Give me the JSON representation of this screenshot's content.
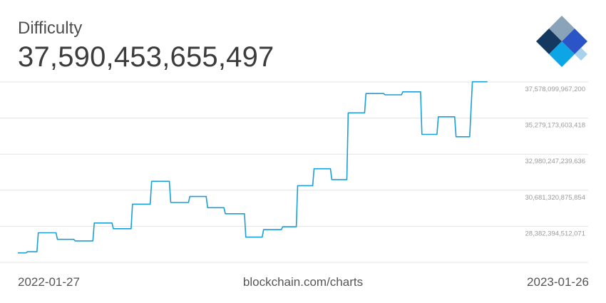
{
  "header": {
    "title": "Difficulty",
    "current_value": "37,590,453,655,497"
  },
  "footer": {
    "start_date": "2022-01-27",
    "source": "blockchain.com/charts",
    "end_date": "2023-01-26"
  },
  "colors": {
    "line": "#1c9fd6",
    "grid": "#e3e3e3",
    "tick_text": "#9a9a9a",
    "logo_dark": "#14385f",
    "logo_blue": "#2b54c7",
    "logo_cyan": "#0ea5e6",
    "logo_gray": "#8aa3b8",
    "logo_light": "#a9d3ea"
  },
  "chart_data": {
    "type": "line",
    "title": "Difficulty",
    "xlabel": "",
    "ylabel": "",
    "grid": true,
    "legend": "none",
    "xlim": [
      "2022-01-27",
      "2023-01-26"
    ],
    "ylim": [
      26083468148288,
      37578099967200
    ],
    "y_ticks": [
      37578099967200,
      35279173603418,
      32980247239636,
      30681320875854,
      28382394512071
    ],
    "y_tick_labels": [
      "37,578,099,967,200",
      "35,279,173,603,418",
      "32,980,247,239,636",
      "30,681,320,875,854",
      "28,382,394,512,071"
    ],
    "series": [
      {
        "points": [
          [
            "2022-01-27",
            26690000000000
          ],
          [
            "2022-02-02",
            26690000000000
          ],
          [
            "2022-02-03",
            26760000000000
          ],
          [
            "2022-02-10",
            26760000000000
          ],
          [
            "2022-02-11",
            27970000000000
          ],
          [
            "2022-02-24",
            27970000000000
          ],
          [
            "2022-02-25",
            27550000000000
          ],
          [
            "2022-03-09",
            27550000000000
          ],
          [
            "2022-03-10",
            27450000000000
          ],
          [
            "2022-03-23",
            27450000000000
          ],
          [
            "2022-03-24",
            28590000000000
          ],
          [
            "2022-04-06",
            28590000000000
          ],
          [
            "2022-04-07",
            28230000000000
          ],
          [
            "2022-04-20",
            28230000000000
          ],
          [
            "2022-04-21",
            29790000000000
          ],
          [
            "2022-05-04",
            29790000000000
          ],
          [
            "2022-05-05",
            31250000000000
          ],
          [
            "2022-05-18",
            31250000000000
          ],
          [
            "2022-05-19",
            29900000000000
          ],
          [
            "2022-06-01",
            29900000000000
          ],
          [
            "2022-06-02",
            30280000000000
          ],
          [
            "2022-06-14",
            30280000000000
          ],
          [
            "2022-06-15",
            29570000000000
          ],
          [
            "2022-06-27",
            29570000000000
          ],
          [
            "2022-06-28",
            29180000000000
          ],
          [
            "2022-07-12",
            29180000000000
          ],
          [
            "2022-07-13",
            27690000000000
          ],
          [
            "2022-07-25",
            27690000000000
          ],
          [
            "2022-07-26",
            28170000000000
          ],
          [
            "2022-08-08",
            28170000000000
          ],
          [
            "2022-08-09",
            28350000000000
          ],
          [
            "2022-08-19",
            28350000000000
          ],
          [
            "2022-08-20",
            30970000000000
          ],
          [
            "2022-08-31",
            30970000000000
          ],
          [
            "2022-09-01",
            32050000000000
          ],
          [
            "2022-09-13",
            32050000000000
          ],
          [
            "2022-09-14",
            31360000000000
          ],
          [
            "2022-09-25",
            31360000000000
          ],
          [
            "2022-09-26",
            35610000000000
          ],
          [
            "2022-10-08",
            35610000000000
          ],
          [
            "2022-10-09",
            36840000000000
          ],
          [
            "2022-10-22",
            36840000000000
          ],
          [
            "2022-10-23",
            36760000000000
          ],
          [
            "2022-11-04",
            36760000000000
          ],
          [
            "2022-11-05",
            36950000000000
          ],
          [
            "2022-11-18",
            36950000000000
          ],
          [
            "2022-11-19",
            34240000000000
          ],
          [
            "2022-11-30",
            34240000000000
          ],
          [
            "2022-12-01",
            35360000000000
          ],
          [
            "2022-12-13",
            35360000000000
          ],
          [
            "2022-12-14",
            34090000000000
          ],
          [
            "2022-12-24",
            34090000000000
          ],
          [
            "2022-12-26",
            37590000000000
          ],
          [
            "2023-01-06",
            37590000000000
          ]
        ]
      }
    ]
  }
}
